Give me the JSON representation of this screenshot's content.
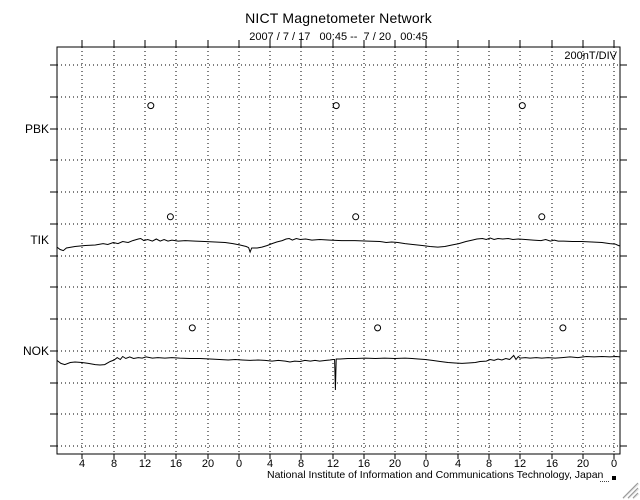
{
  "window": {
    "background": "#ffffff",
    "text_color": "#000000"
  },
  "chart_data": {
    "type": "line",
    "title": "NICT Magnetometer Network",
    "subtitle": "2007 / 7 / 17   00:45 --  7 / 20   00:45",
    "scale_label": "200nT/DIV",
    "footer": "National Institute of Information and Communications Technology, Japan",
    "grid": "dotted",
    "line_color": "#000000",
    "x_axis": {
      "unit": "hour (UT)",
      "start": "2007/7/17 00:45",
      "end": "2007/7/20 00:45",
      "span_hours": 72,
      "tick_interval_hours": 4,
      "first_tick_offset_hours": 3.25,
      "tick_labels": [
        "4",
        "8",
        "12",
        "16",
        "20",
        "0",
        "4",
        "8",
        "12",
        "16",
        "20",
        "0",
        "4",
        "8",
        "12",
        "16",
        "20",
        "0"
      ]
    },
    "y_axis": {
      "unit": "nT",
      "nT_per_division": 200,
      "divisions": 12,
      "tick_count": 13
    },
    "noon_marker_offset_divisions": 0.72,
    "stations": [
      {
        "label": "PBK",
        "baseline_division": 2,
        "noon_marker_hours": [
          12.0,
          35.7,
          59.5
        ],
        "trace": []
      },
      {
        "label": "TIK",
        "baseline_division": 5.5,
        "noon_marker_hours": [
          14.5,
          38.2,
          62.0
        ],
        "trace": [
          [
            0,
            -47
          ],
          [
            0.4,
            -62
          ],
          [
            0.8,
            -69
          ],
          [
            1.2,
            -53
          ],
          [
            2.3,
            -43
          ],
          [
            3.6,
            -37
          ],
          [
            4.9,
            -34
          ],
          [
            5.9,
            -25
          ],
          [
            6.5,
            -31
          ],
          [
            7.2,
            -18
          ],
          [
            7.8,
            -25
          ],
          [
            8.4,
            -12
          ],
          [
            9.1,
            -18
          ],
          [
            9.7,
            -6
          ],
          [
            10.4,
            4
          ],
          [
            10.7,
            7
          ],
          [
            11.1,
            -6
          ],
          [
            11.6,
            1
          ],
          [
            12.2,
            -9
          ],
          [
            12.7,
            4
          ],
          [
            13.2,
            -9
          ],
          [
            13.7,
            1
          ],
          [
            14.2,
            -9
          ],
          [
            14.7,
            -3
          ],
          [
            15.5,
            -9
          ],
          [
            16.4,
            -6
          ],
          [
            17.7,
            -9
          ],
          [
            18.9,
            -12
          ],
          [
            20.2,
            -15
          ],
          [
            21.5,
            -18
          ],
          [
            22.5,
            -25
          ],
          [
            23.4,
            -34
          ],
          [
            24.2,
            -43
          ],
          [
            24.5,
            -50
          ],
          [
            24.7,
            -78
          ],
          [
            24.9,
            -53
          ],
          [
            25.6,
            -53
          ],
          [
            26.2,
            -47
          ],
          [
            26.9,
            -37
          ],
          [
            27.5,
            -25
          ],
          [
            28.1,
            -15
          ],
          [
            28.8,
            -6
          ],
          [
            29.3,
            4
          ],
          [
            29.7,
            7
          ],
          [
            30.1,
            -3
          ],
          [
            30.6,
            7
          ],
          [
            31.1,
            1
          ],
          [
            31.8,
            4
          ],
          [
            32.6,
            -3
          ],
          [
            33.6,
            1
          ],
          [
            34.9,
            -3
          ],
          [
            36.4,
            -6
          ],
          [
            38.1,
            -6
          ],
          [
            39.8,
            -9
          ],
          [
            41.3,
            -12
          ],
          [
            42.1,
            -18
          ],
          [
            42.8,
            -15
          ],
          [
            43.6,
            -18
          ],
          [
            44.5,
            -25
          ],
          [
            45.5,
            -31
          ],
          [
            46.7,
            -37
          ],
          [
            47.7,
            -43
          ],
          [
            48.7,
            -47
          ],
          [
            49.6,
            -43
          ],
          [
            50.5,
            -34
          ],
          [
            51.4,
            -25
          ],
          [
            52.3,
            -12
          ],
          [
            53.1,
            -3
          ],
          [
            53.7,
            4
          ],
          [
            54.4,
            7
          ],
          [
            54.9,
            1
          ],
          [
            55.4,
            10
          ],
          [
            55.9,
            1
          ],
          [
            56.4,
            7
          ],
          [
            57,
            4
          ],
          [
            57.7,
            7
          ],
          [
            58.3,
            1
          ],
          [
            59,
            4
          ],
          [
            59.9,
            1
          ],
          [
            60.9,
            -3
          ],
          [
            61.9,
            -6
          ],
          [
            62.5,
            1
          ],
          [
            63.1,
            -9
          ],
          [
            63.6,
            -3
          ],
          [
            64.1,
            -9
          ],
          [
            64.8,
            -9
          ],
          [
            65.9,
            -12
          ],
          [
            67.1,
            -12
          ],
          [
            68.4,
            -15
          ],
          [
            69.7,
            -18
          ],
          [
            70.7,
            -25
          ],
          [
            71.4,
            -28
          ],
          [
            71.8,
            -37
          ],
          [
            72,
            -40
          ]
        ]
      },
      {
        "label": "NOK",
        "baseline_division": 9,
        "noon_marker_hours": [
          17.3,
          41.0,
          64.7
        ],
        "trace": [
          [
            0,
            -61
          ],
          [
            0.5,
            -80
          ],
          [
            1,
            -87
          ],
          [
            1.7,
            -74
          ],
          [
            2.3,
            -71
          ],
          [
            3.2,
            -74
          ],
          [
            4,
            -80
          ],
          [
            4.9,
            -87
          ],
          [
            5.5,
            -90
          ],
          [
            6.1,
            -87
          ],
          [
            6.8,
            -68
          ],
          [
            7.3,
            -58
          ],
          [
            7.7,
            -43
          ],
          [
            8.1,
            -55
          ],
          [
            8.4,
            -36
          ],
          [
            8.8,
            -49
          ],
          [
            9.3,
            -39
          ],
          [
            9.8,
            -49
          ],
          [
            10.4,
            -43
          ],
          [
            10.9,
            -46
          ],
          [
            11.4,
            -39
          ],
          [
            12.2,
            -46
          ],
          [
            12.9,
            -43
          ],
          [
            13.8,
            -46
          ],
          [
            14.7,
            -43
          ],
          [
            15.7,
            -46
          ],
          [
            17,
            -49
          ],
          [
            18.3,
            -49
          ],
          [
            19.6,
            -52
          ],
          [
            20.8,
            -55
          ],
          [
            21.9,
            -58
          ],
          [
            22.8,
            -55
          ],
          [
            23.7,
            -58
          ],
          [
            24.7,
            -61
          ],
          [
            25.7,
            -58
          ],
          [
            26.6,
            -61
          ],
          [
            27.5,
            -65
          ],
          [
            28.3,
            -61
          ],
          [
            29.2,
            -65
          ],
          [
            29.8,
            -71
          ],
          [
            30.4,
            -65
          ],
          [
            31.1,
            -68
          ],
          [
            31.7,
            -61
          ],
          [
            32.4,
            -65
          ],
          [
            33,
            -61
          ],
          [
            33.6,
            -65
          ],
          [
            34.4,
            -61
          ],
          [
            34.9,
            -58
          ],
          [
            35.3,
            -55
          ],
          [
            35.5,
            -55
          ],
          [
            35.6,
            -247
          ],
          [
            35.7,
            -52
          ],
          [
            36.2,
            -52
          ],
          [
            37.2,
            -49
          ],
          [
            38.2,
            -49
          ],
          [
            39.4,
            -46
          ],
          [
            40.7,
            -49
          ],
          [
            41.9,
            -46
          ],
          [
            43.2,
            -49
          ],
          [
            44.5,
            -46
          ],
          [
            45.4,
            -49
          ],
          [
            46.2,
            -52
          ],
          [
            47.1,
            -55
          ],
          [
            48,
            -61
          ],
          [
            49,
            -68
          ],
          [
            50,
            -74
          ],
          [
            50.9,
            -77
          ],
          [
            51.8,
            -80
          ],
          [
            52.6,
            -77
          ],
          [
            53.5,
            -74
          ],
          [
            54.1,
            -68
          ],
          [
            54.9,
            -65
          ],
          [
            55.4,
            -55
          ],
          [
            55.9,
            -61
          ],
          [
            56.4,
            -52
          ],
          [
            56.9,
            -58
          ],
          [
            57.4,
            -49
          ],
          [
            57.9,
            -55
          ],
          [
            58.4,
            -30
          ],
          [
            58.7,
            -55
          ],
          [
            59,
            -36
          ],
          [
            59.2,
            -46
          ],
          [
            59.9,
            -43
          ],
          [
            60.5,
            -46
          ],
          [
            61.3,
            -43
          ],
          [
            62,
            -46
          ],
          [
            62.8,
            -43
          ],
          [
            63.7,
            -46
          ],
          [
            64.6,
            -43
          ],
          [
            65.6,
            -39
          ],
          [
            66.6,
            -43
          ],
          [
            67.7,
            -36
          ],
          [
            68.7,
            -39
          ],
          [
            69.7,
            -36
          ],
          [
            70.7,
            -39
          ],
          [
            71.5,
            -36
          ],
          [
            72,
            -39
          ]
        ]
      }
    ]
  }
}
